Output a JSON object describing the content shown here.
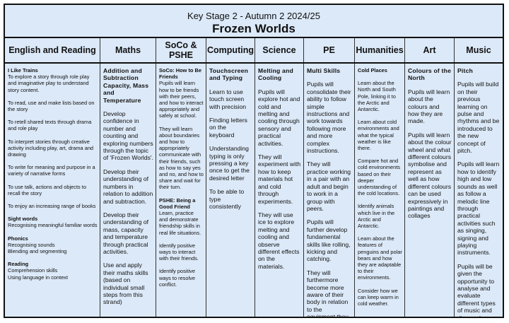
{
  "title": {
    "line1": "Key Stage 2 - Autumn 2 2024/25",
    "line2": "Frozen Worlds"
  },
  "columns": [
    {
      "header": "English and Reading",
      "size": "sm",
      "blocks": [
        {
          "h": "I Like Trains",
          "p": [
            "To explore a story through role play and imaginative play to understand story content."
          ]
        },
        {
          "p": [
            "To read, use and make lists based on the story"
          ]
        },
        {
          "p": [
            "To retell shared texts through drama and role play"
          ]
        },
        {
          "p": [
            "To interpret stories through creative activity including play, art, drama and drawing"
          ]
        },
        {
          "p": [
            "To write for meaning and purpose in a variety of narrative forms"
          ]
        },
        {
          "p": [
            "To use talk, actions and objects to recall the story"
          ]
        },
        {
          "p": [
            "To enjoy an increasing range of books"
          ]
        },
        {
          "h": "Sight words",
          "p": [
            "Recognising meaningful familiar words"
          ]
        },
        {
          "h": "Phonics",
          "p": [
            "Recognising sounds",
            "Blending and segmenting"
          ]
        },
        {
          "h": "Reading",
          "p": [
            "Comprehension skills",
            "Using language in context"
          ]
        }
      ]
    },
    {
      "header": "Maths",
      "size": "md",
      "blocks": [
        {
          "h": "Addition and Subtraction Capacity, Mass and Temperature"
        },
        {
          "p": [
            "Develop confidence in number and counting and exploring numbers through the topic of 'Frozen Worlds'."
          ]
        },
        {
          "p": [
            "Develop their understanding of numbers in relation to addition and subtraction."
          ]
        },
        {
          "p": [
            "Develop their understanding of mass, capacity and temperature through practical activities."
          ]
        },
        {
          "p": [
            "Use and apply their maths skills (based on individual small steps from this strand)"
          ]
        }
      ]
    },
    {
      "header": "SoCo & PSHE",
      "size": "sm",
      "blocks": [
        {
          "h": "SoCo: How to Be Friends",
          "p": [
            "Pupils will learn how to be friends with their peers, and how to interact appropriately and safely at school."
          ]
        },
        {
          "p": [
            "They will learn about boundaries and how to appropriately communicate with their friends, such as how to say yes and no, and how to share and wait for their turn."
          ]
        },
        {
          "h": "PSHE: Being a Good Friend",
          "p": [
            "Learn, practice and demonstrate friendship skills in real life situations."
          ]
        },
        {
          "p": [
            "Identify positive ways to interact with their friends."
          ]
        },
        {
          "p": [
            "Identify positive ways to resolve conflict."
          ]
        }
      ]
    },
    {
      "header": "Computing",
      "size": "md",
      "blocks": [
        {
          "h": "Touchscreen and Typing"
        },
        {
          "p": [
            "Learn to use touch screen with precision"
          ]
        },
        {
          "p": [
            "Finding letters on the keyboard"
          ]
        },
        {
          "p": [
            "Understanding typing is only pressing a key once to get the desired letter"
          ]
        },
        {
          "p": [
            "To be able to type consistently"
          ]
        }
      ]
    },
    {
      "header": "Science",
      "size": "md",
      "blocks": [
        {
          "h": "Melting and Cooling"
        },
        {
          "p": [
            "Pupils will explore hot and cold and melting and cooling through sensory and practical activities."
          ]
        },
        {
          "p": [
            "They will experiment with how to keep materials hot and cold through experiments."
          ]
        },
        {
          "p": [
            "They will use ice to explore melting and cooling and observe different effects on the materials."
          ]
        }
      ]
    },
    {
      "header": "PE",
      "size": "md",
      "blocks": [
        {
          "h": "Multi Skills"
        },
        {
          "p": [
            "Pupils will consolidate their ability to follow simple instructions and work towards following more and more complex instructions."
          ]
        },
        {
          "p": [
            "They will practice working in a pair with an adult and begin to work in a group with peers."
          ]
        },
        {
          "p": [
            "Pupils will further develop fundamental skills like rolling, kicking and catching."
          ]
        },
        {
          "p": [
            "They will furthermore become more aware of their body in relation to the equipment they are using."
          ]
        }
      ]
    },
    {
      "header": "Humanities",
      "size": "sm",
      "blocks": [
        {
          "h": "Cold Places"
        },
        {
          "p": [
            "Learn about the North and South Pole, linking it to the Arctic and Antarctic."
          ]
        },
        {
          "p": [
            "Learn about cold environments and what the typical weather is like there."
          ]
        },
        {
          "p": [
            "Compare hot and cold environments based on their deeper understanding of the cold locations."
          ]
        },
        {
          "p": [
            "Identify animals which live in the Arctic and Antarctic."
          ]
        },
        {
          "p": [
            "Learn about the features of penguins and polar bears and how they are adaptable to their environments."
          ]
        },
        {
          "p": [
            "Consider how we can keep warm in cold weather."
          ]
        }
      ]
    },
    {
      "header": "Art",
      "size": "md",
      "blocks": [
        {
          "h": "Colours of the North"
        },
        {
          "p": [
            "Pupils will learn about the colours and how they are made."
          ]
        },
        {
          "p": [
            "Pupils will learn about the colour wheel and what different colours symbolise and represent as well as how different colours can be used expressively in paintings and collages"
          ]
        }
      ]
    },
    {
      "header": "Music",
      "size": "md",
      "blocks": [
        {
          "h": "Pitch"
        },
        {
          "p": [
            "Pupils will build on their previous learning on pulse and rhythms and be introduced to the new concept of pitch."
          ]
        },
        {
          "p": [
            "Pupils will learn how to identify high and low sounds as well as follow a melodic line through practical activities such as singing, signing and playing instruments."
          ]
        },
        {
          "p": [
            "Pupils will be given the opportunity to analyse and evaluate different types of music and discuss how pitch is used throughout."
          ]
        }
      ]
    }
  ]
}
